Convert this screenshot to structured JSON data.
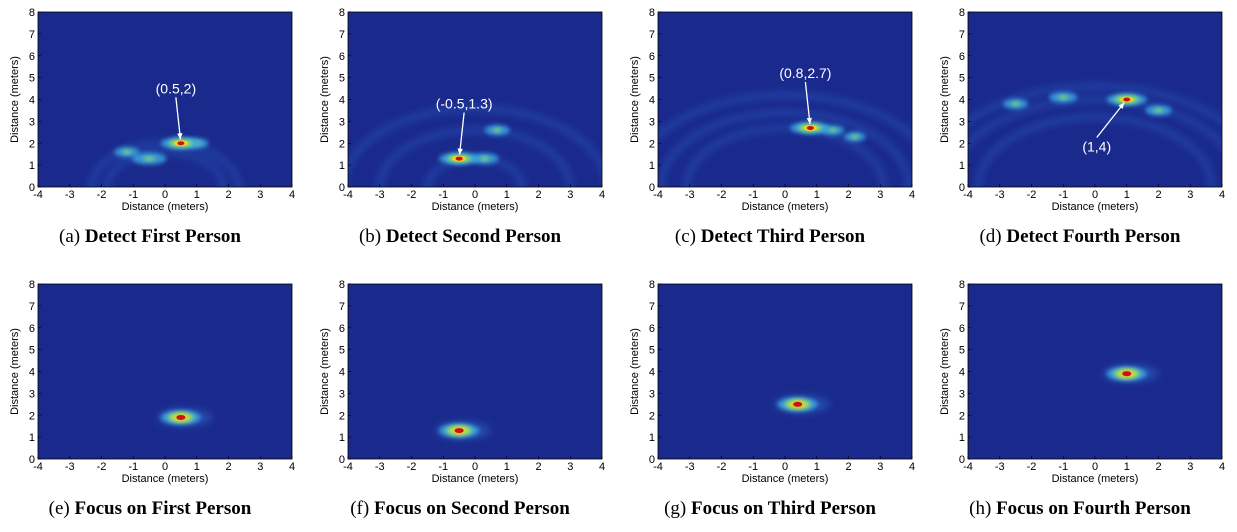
{
  "colors": {
    "background": "#1a2a8c",
    "ring": "#2f5fc4",
    "low": "#3aa6e0",
    "mid": "#8fe06a",
    "high": "#f0d020",
    "peak": "#d01010",
    "annotation": "#ffffff"
  },
  "chart_data": [
    {
      "type": "heatmap",
      "caption_label": "(a)",
      "caption_title": "Detect First Person",
      "xlabel": "Distance (meters)",
      "ylabel": "Distance (meters)",
      "xlim": [
        -4,
        4
      ],
      "ylim": [
        0,
        8
      ],
      "xticks": [
        "-4",
        "-3",
        "-2",
        "-1",
        "0",
        "1",
        "2",
        "3",
        "4"
      ],
      "yticks": [
        "0",
        "1",
        "2",
        "3",
        "4",
        "5",
        "6",
        "7",
        "8"
      ],
      "peak": {
        "x": 0.5,
        "y": 2
      },
      "annotation": "(0.5,2)",
      "mode": "detect",
      "blobs": [
        {
          "x": -0.5,
          "y": 1.3,
          "strength": 0.7
        },
        {
          "x": -1.2,
          "y": 1.6,
          "strength": 0.4
        },
        {
          "x": 1.0,
          "y": 2.0,
          "strength": 0.35
        }
      ],
      "rings": [
        2.0,
        1.6
      ]
    },
    {
      "type": "heatmap",
      "caption_label": "(b)",
      "caption_title": "Detect Second Person",
      "xlabel": "Distance (meters)",
      "ylabel": "Distance (meters)",
      "xlim": [
        -4,
        4
      ],
      "ylim": [
        0,
        8
      ],
      "xticks": [
        "-4",
        "-3",
        "-2",
        "-1",
        "0",
        "1",
        "2",
        "3",
        "4"
      ],
      "yticks": [
        "0",
        "1",
        "2",
        "3",
        "4",
        "5",
        "6",
        "7",
        "8"
      ],
      "peak": {
        "x": -0.5,
        "y": 1.3
      },
      "annotation": "(-0.5,1.3)",
      "mode": "detect",
      "blobs": [
        {
          "x": 0.3,
          "y": 1.3,
          "strength": 0.5
        },
        {
          "x": 0.7,
          "y": 2.6,
          "strength": 0.4
        }
      ],
      "rings": [
        1.3,
        2.6,
        3.6
      ]
    },
    {
      "type": "heatmap",
      "caption_label": "(c)",
      "caption_title": "Detect Third Person",
      "xlabel": "Distance (meters)",
      "ylabel": "Distance (meters)",
      "xlim": [
        -4,
        4
      ],
      "ylim": [
        0,
        8
      ],
      "xticks": [
        "-4",
        "-3",
        "-2",
        "-1",
        "0",
        "1",
        "2",
        "3",
        "4"
      ],
      "yticks": [
        "0",
        "1",
        "2",
        "3",
        "4",
        "5",
        "6",
        "7",
        "8"
      ],
      "peak": {
        "x": 0.8,
        "y": 2.7
      },
      "annotation": "(0.8,2.7)",
      "mode": "detect",
      "blobs": [
        {
          "x": 1.5,
          "y": 2.6,
          "strength": 0.35
        },
        {
          "x": 2.2,
          "y": 2.3,
          "strength": 0.3
        }
      ],
      "rings": [
        2.7,
        3.4,
        4.2
      ]
    },
    {
      "type": "heatmap",
      "caption_label": "(d)",
      "caption_title": "Detect Fourth Person",
      "xlabel": "Distance (meters)",
      "ylabel": "Distance (meters)",
      "xlim": [
        -4,
        4
      ],
      "ylim": [
        0,
        8
      ],
      "xticks": [
        "-4",
        "-3",
        "-2",
        "-1",
        "0",
        "1",
        "2",
        "3",
        "4"
      ],
      "yticks": [
        "0",
        "1",
        "2",
        "3",
        "4",
        "5",
        "6",
        "7",
        "8"
      ],
      "peak": {
        "x": 1,
        "y": 4
      },
      "annotation": "(1,4)",
      "mode": "detect",
      "blobs": [
        {
          "x": -1.0,
          "y": 4.1,
          "strength": 0.5
        },
        {
          "x": 2.0,
          "y": 3.5,
          "strength": 0.45
        },
        {
          "x": -2.5,
          "y": 3.8,
          "strength": 0.4
        }
      ],
      "rings": [
        4.0,
        4.6,
        3.2
      ]
    },
    {
      "type": "heatmap",
      "caption_label": "(e)",
      "caption_title": "Focus on First Person",
      "xlabel": "Distance (meters)",
      "ylabel": "Distance (meters)",
      "xlim": [
        -4,
        4
      ],
      "ylim": [
        0,
        8
      ],
      "xticks": [
        "-4",
        "-3",
        "-2",
        "-1",
        "0",
        "1",
        "2",
        "3",
        "4"
      ],
      "yticks": [
        "0",
        "1",
        "2",
        "3",
        "4",
        "5",
        "6",
        "7",
        "8"
      ],
      "peak": {
        "x": 0.5,
        "y": 1.9
      },
      "annotation": "",
      "mode": "focus",
      "blobs": [],
      "rings": []
    },
    {
      "type": "heatmap",
      "caption_label": "(f)",
      "caption_title": "Focus on Second Person",
      "xlabel": "Distance (meters)",
      "ylabel": "Distance (meters)",
      "xlim": [
        -4,
        4
      ],
      "ylim": [
        0,
        8
      ],
      "xticks": [
        "-4",
        "-3",
        "-2",
        "-1",
        "0",
        "1",
        "2",
        "3",
        "4"
      ],
      "yticks": [
        "0",
        "1",
        "2",
        "3",
        "4",
        "5",
        "6",
        "7",
        "8"
      ],
      "peak": {
        "x": -0.5,
        "y": 1.3
      },
      "annotation": "",
      "mode": "focus",
      "blobs": [],
      "rings": []
    },
    {
      "type": "heatmap",
      "caption_label": "(g)",
      "caption_title": "Focus on Third Person",
      "xlabel": "Distance (meters)",
      "ylabel": "Distance (meters)",
      "xlim": [
        -4,
        4
      ],
      "ylim": [
        0,
        8
      ],
      "xticks": [
        "-4",
        "-3",
        "-2",
        "-1",
        "0",
        "1",
        "2",
        "3",
        "4"
      ],
      "yticks": [
        "0",
        "1",
        "2",
        "3",
        "4",
        "5",
        "6",
        "7",
        "8"
      ],
      "peak": {
        "x": 0.4,
        "y": 2.5
      },
      "annotation": "",
      "mode": "focus",
      "blobs": [],
      "rings": []
    },
    {
      "type": "heatmap",
      "caption_label": "(h)",
      "caption_title": "Focus on Fourth Person",
      "xlabel": "Distance (meters)",
      "ylabel": "Distance (meters)",
      "xlim": [
        -4,
        4
      ],
      "ylim": [
        0,
        8
      ],
      "xticks": [
        "-4",
        "-3",
        "-2",
        "-1",
        "0",
        "1",
        "2",
        "3",
        "4"
      ],
      "yticks": [
        "0",
        "1",
        "2",
        "3",
        "4",
        "5",
        "6",
        "7",
        "8"
      ],
      "peak": {
        "x": 1,
        "y": 3.9
      },
      "annotation": "",
      "mode": "focus",
      "blobs": [],
      "rings": []
    }
  ]
}
